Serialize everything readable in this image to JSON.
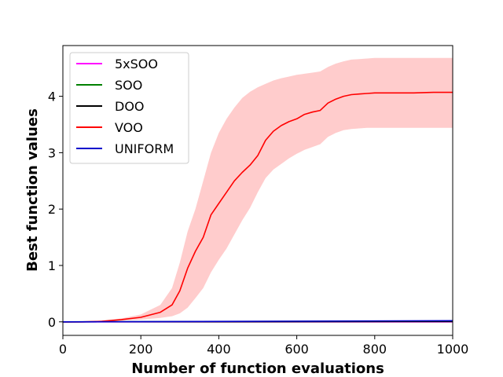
{
  "chart_data": {
    "type": "line",
    "title": "",
    "xlabel": "Number of function evaluations",
    "ylabel": "Best function values",
    "xlim": [
      0,
      1000
    ],
    "ylim": [
      -0.24,
      4.9
    ],
    "xticks": [
      "0",
      "200",
      "400",
      "600",
      "800",
      "1000"
    ],
    "yticks": [
      "0",
      "1",
      "2",
      "3",
      "4"
    ],
    "legend_position": "top-left",
    "grid": false,
    "series": [
      {
        "name": "5xSOO",
        "color": "#ff00ff",
        "x": [
          0,
          1000
        ],
        "y": [
          0,
          0
        ]
      },
      {
        "name": "SOO",
        "color": "#008000",
        "x": [
          0,
          1000
        ],
        "y": [
          0,
          0.01
        ]
      },
      {
        "name": "DOO",
        "color": "#000000",
        "x": [
          0,
          1000
        ],
        "y": [
          0,
          0.005
        ]
      },
      {
        "name": "VOO",
        "color": "#ff0000",
        "band_color": "#ffcccc",
        "x": [
          0,
          50,
          100,
          150,
          200,
          250,
          280,
          300,
          320,
          340,
          360,
          380,
          400,
          420,
          440,
          460,
          480,
          500,
          520,
          540,
          560,
          580,
          600,
          620,
          640,
          660,
          680,
          700,
          720,
          740,
          760,
          780,
          800,
          850,
          900,
          950,
          1000
        ],
        "y": [
          0,
          0.0,
          0.01,
          0.04,
          0.08,
          0.17,
          0.3,
          0.55,
          0.95,
          1.25,
          1.5,
          1.9,
          2.1,
          2.3,
          2.5,
          2.65,
          2.78,
          2.95,
          3.22,
          3.38,
          3.48,
          3.55,
          3.6,
          3.68,
          3.72,
          3.75,
          3.88,
          3.95,
          4.0,
          4.03,
          4.04,
          4.05,
          4.06,
          4.06,
          4.06,
          4.07,
          4.07
        ],
        "y_upper": [
          0,
          0.0,
          0.02,
          0.06,
          0.13,
          0.3,
          0.6,
          1.05,
          1.6,
          2.0,
          2.5,
          3.0,
          3.35,
          3.6,
          3.8,
          3.97,
          4.08,
          4.16,
          4.22,
          4.28,
          4.32,
          4.35,
          4.38,
          4.4,
          4.42,
          4.44,
          4.52,
          4.58,
          4.62,
          4.65,
          4.66,
          4.67,
          4.68,
          4.68,
          4.68,
          4.68,
          4.68
        ],
        "y_lower": [
          0,
          0.0,
          0.0,
          0.02,
          0.04,
          0.07,
          0.1,
          0.15,
          0.25,
          0.42,
          0.6,
          0.88,
          1.1,
          1.3,
          1.55,
          1.8,
          2.02,
          2.3,
          2.55,
          2.7,
          2.8,
          2.9,
          2.98,
          3.05,
          3.1,
          3.15,
          3.28,
          3.35,
          3.4,
          3.42,
          3.43,
          3.44,
          3.44,
          3.44,
          3.44,
          3.44,
          3.44
        ]
      },
      {
        "name": "UNIFORM",
        "color": "#0000cc",
        "x": [
          0,
          1000
        ],
        "y": [
          0,
          0.02
        ]
      }
    ]
  }
}
